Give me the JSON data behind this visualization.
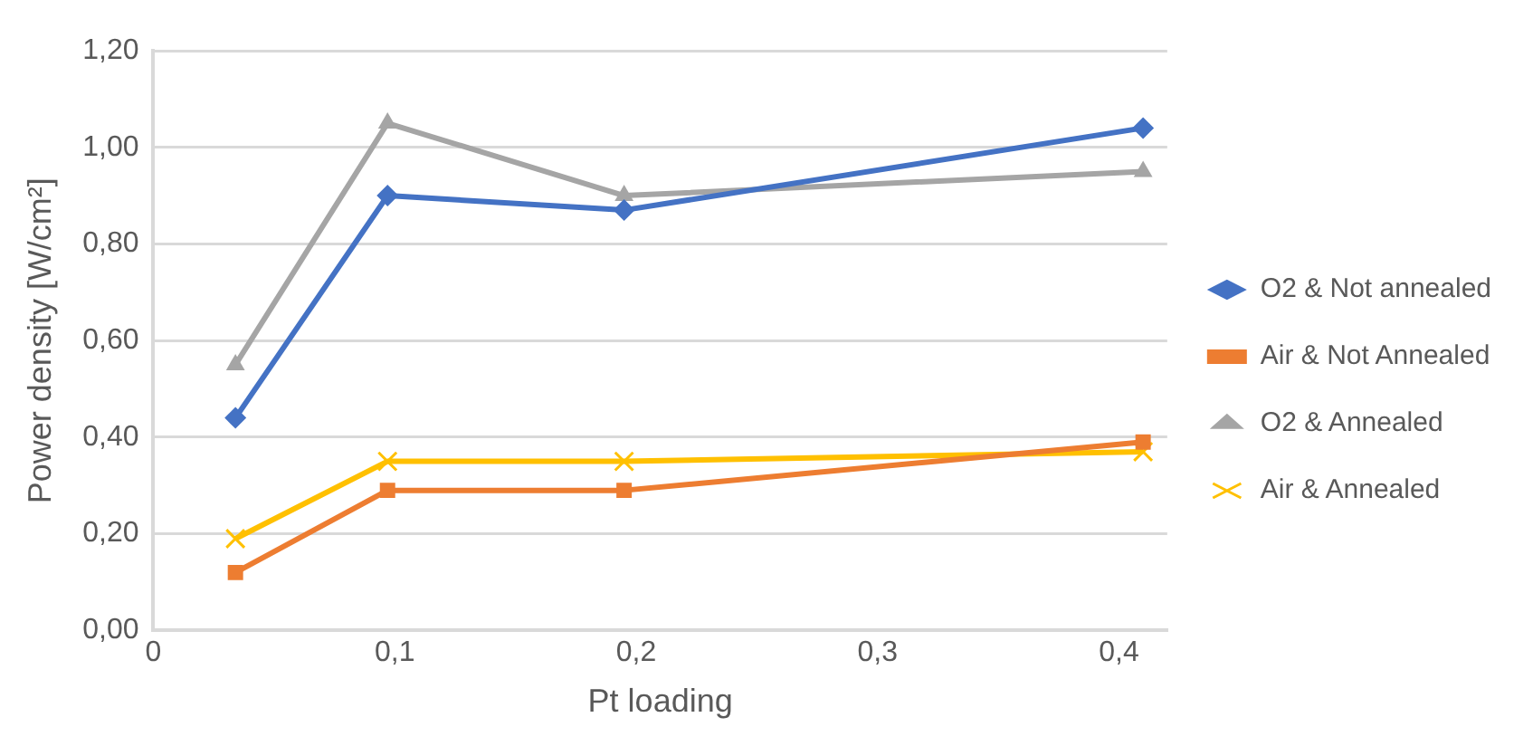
{
  "chart_data": {
    "type": "line",
    "xlabel": "Pt loading",
    "ylabel": "Power density [W/cm²]",
    "xlim": [
      0,
      0.42
    ],
    "xticks": [
      0,
      {
        "value": 0.1,
        "label": "0,1"
      },
      {
        "value": 0.2,
        "label": "0,2"
      },
      {
        "value": 0.3,
        "label": "0,3"
      },
      {
        "value": 0.4,
        "label": "0,4"
      }
    ],
    "ylim": [
      0,
      1.2
    ],
    "yticks": [
      {
        "value": 0,
        "label": "0,00"
      },
      {
        "value": 0.2,
        "label": "0,20"
      },
      {
        "value": 0.4,
        "label": "0,40"
      },
      {
        "value": 0.6,
        "label": "0,60"
      },
      {
        "value": 0.8,
        "label": "0,80"
      },
      {
        "value": 1,
        "label": "1,00"
      },
      {
        "value": 1.2,
        "label": "1,20"
      }
    ],
    "grid": "y",
    "legend": "right",
    "line_style": "solid",
    "x": [
      0.034,
      0.097,
      0.195,
      0.41
    ],
    "series": [
      {
        "name": "O2 & Not annealed",
        "color": "#4472c4",
        "marker": "diamond",
        "values": [
          0.44,
          0.9,
          0.87,
          1.04
        ]
      },
      {
        "name": "Air & Not Annealed",
        "color": "#ed7d31",
        "marker": "square",
        "values": [
          0.12,
          0.29,
          0.29,
          0.39
        ]
      },
      {
        "name": "O2 & Annealed",
        "color": "#a5a5a5",
        "marker": "triangle",
        "values": [
          0.55,
          1.05,
          0.9,
          0.95
        ]
      },
      {
        "name": "Air & Annealed",
        "color": "#ffc000",
        "marker": "cross",
        "values": [
          0.19,
          0.35,
          0.35,
          0.37
        ]
      }
    ]
  }
}
